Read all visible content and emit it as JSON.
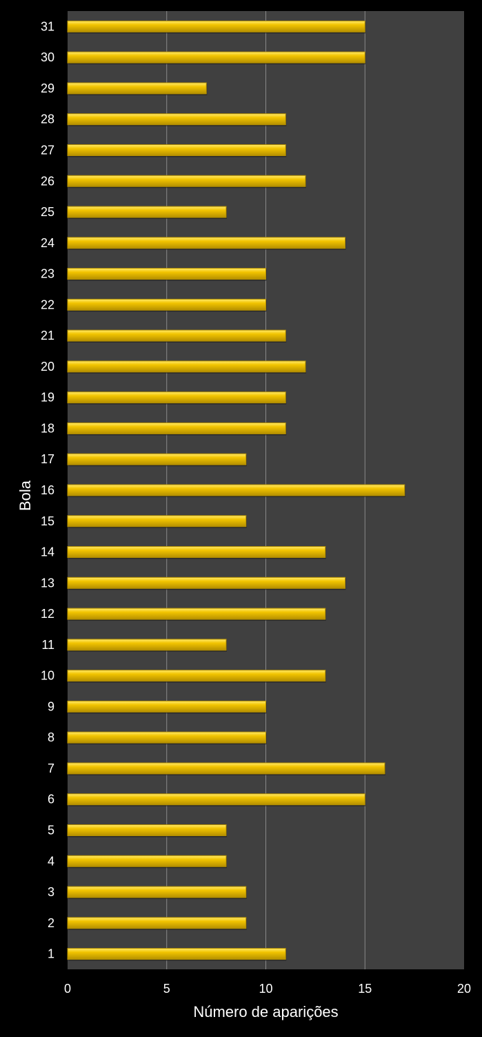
{
  "colors": {
    "background": "#000000",
    "plot_area": "#404040",
    "gridline": "#8a8a8a",
    "bar": "#f2c400",
    "bar_highlight": "#ffe96a",
    "bar_shadow": "#b48f00",
    "text": "#ffffff"
  },
  "chart_data": {
    "type": "bar",
    "orientation": "horizontal",
    "title": "",
    "xlabel": "Número de aparições",
    "ylabel": "Bola",
    "xlim": [
      0,
      20
    ],
    "x_ticks": [
      0,
      5,
      10,
      15,
      20
    ],
    "grid": true,
    "categories": [
      "1",
      "2",
      "3",
      "4",
      "5",
      "6",
      "7",
      "8",
      "9",
      "10",
      "11",
      "12",
      "13",
      "14",
      "15",
      "16",
      "17",
      "18",
      "19",
      "20",
      "21",
      "22",
      "23",
      "24",
      "25",
      "26",
      "27",
      "28",
      "29",
      "30",
      "31"
    ],
    "values": [
      11,
      9,
      9,
      8,
      8,
      15,
      16,
      10,
      10,
      13,
      8,
      13,
      14,
      13,
      9,
      17,
      9,
      11,
      11,
      12,
      11,
      10,
      10,
      14,
      8,
      12,
      11,
      11,
      7,
      15,
      15
    ]
  }
}
